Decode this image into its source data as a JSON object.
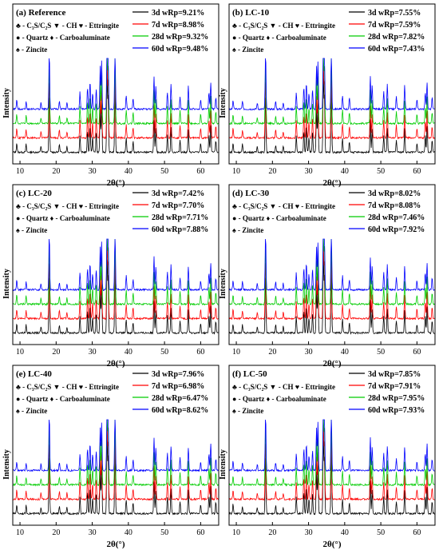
{
  "figure": {
    "legend_text": {
      "line1": "♣ - C₃S/C₂S  ▼ - CH  ♥ - Ettringite",
      "line2": "● - Quartz  ♦ - Carboaluminate",
      "line3": "♠ - Zincite"
    }
  },
  "chart_data": [
    {
      "type": "line",
      "panel_label": "(a) Reference",
      "xlabel": "2θ(°)",
      "ylabel": "Intensity",
      "xlim": [
        8,
        65
      ],
      "xticks": [
        10,
        20,
        30,
        40,
        50,
        60
      ],
      "series": [
        {
          "name": "3d wRp=9.21%",
          "color": "#000000"
        },
        {
          "name": "7d wRp=8.98%",
          "color": "#ff0000"
        },
        {
          "name": "28d wRp=9.32%",
          "color": "#00cc00"
        },
        {
          "name": "60d wRp=9.48%",
          "color": "#0000ff"
        }
      ]
    },
    {
      "type": "line",
      "panel_label": "(b) LC-10",
      "xlabel": "2θ(°)",
      "ylabel": "Intensity",
      "xlim": [
        8,
        65
      ],
      "xticks": [
        10,
        20,
        30,
        40,
        50,
        60
      ],
      "series": [
        {
          "name": "3d wRp=7.55%",
          "color": "#000000"
        },
        {
          "name": "7d wRp=7.59%",
          "color": "#ff0000"
        },
        {
          "name": "28d wRp=7.82%",
          "color": "#00cc00"
        },
        {
          "name": "60d wRp=7.43%",
          "color": "#0000ff"
        }
      ]
    },
    {
      "type": "line",
      "panel_label": "(c) LC-20",
      "xlabel": "2θ(°)",
      "ylabel": "Intensity",
      "xlim": [
        8,
        65
      ],
      "xticks": [
        10,
        20,
        30,
        40,
        50,
        60
      ],
      "series": [
        {
          "name": "3d wRp=7.42%",
          "color": "#000000"
        },
        {
          "name": "7d wRp=7.70%",
          "color": "#ff0000"
        },
        {
          "name": "28d wRp=7.71%",
          "color": "#00cc00"
        },
        {
          "name": "60d wRp=7.88%",
          "color": "#0000ff"
        }
      ]
    },
    {
      "type": "line",
      "panel_label": "(d) LC-30",
      "xlabel": "2θ(°)",
      "ylabel": "Intensity",
      "xlim": [
        8,
        65
      ],
      "xticks": [
        10,
        20,
        30,
        40,
        50,
        60
      ],
      "series": [
        {
          "name": "3d wRp=8.02%",
          "color": "#000000"
        },
        {
          "name": "7d wRp=8.08%",
          "color": "#ff0000"
        },
        {
          "name": "28d wRp=7.46%",
          "color": "#00cc00"
        },
        {
          "name": "60d wRp=7.92%",
          "color": "#0000ff"
        }
      ]
    },
    {
      "type": "line",
      "panel_label": "(e) LC-40",
      "xlabel": "2θ(°)",
      "ylabel": "Intensity",
      "xlim": [
        8,
        65
      ],
      "xticks": [
        10,
        20,
        30,
        40,
        50,
        60
      ],
      "series": [
        {
          "name": "3d wRp=7.96%",
          "color": "#000000"
        },
        {
          "name": "7d wRp=6.98%",
          "color": "#ff0000"
        },
        {
          "name": "28d wRp=6.47%",
          "color": "#00cc00"
        },
        {
          "name": "60d wRp=8.62%",
          "color": "#0000ff"
        }
      ]
    },
    {
      "type": "line",
      "panel_label": "(f) LC-50",
      "xlabel": "2θ(°)",
      "ylabel": "Intensity",
      "xlim": [
        8,
        65
      ],
      "xticks": [
        10,
        20,
        30,
        40,
        50,
        60
      ],
      "series": [
        {
          "name": "3d wRp=7.85%",
          "color": "#000000"
        },
        {
          "name": "7d wRp=7.91%",
          "color": "#ff0000"
        },
        {
          "name": "28d wRp=7.95%",
          "color": "#00cc00"
        },
        {
          "name": "60d wRp=7.93%",
          "color": "#0000ff"
        }
      ]
    }
  ]
}
